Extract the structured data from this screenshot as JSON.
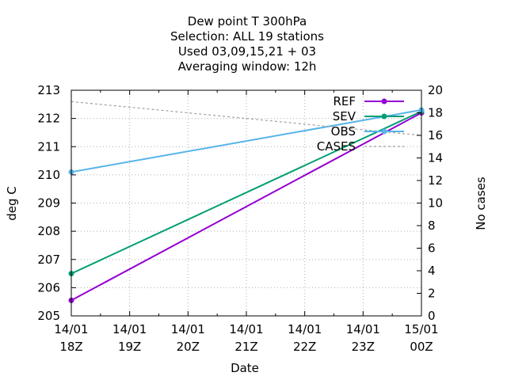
{
  "chart_data": {
    "type": "line",
    "title_lines": [
      "Dew point T 300hPa",
      "Selection: ALL      19 stations",
      "Used  03,09,15,21 + 03",
      "Averaging window: 12h"
    ],
    "xlabel": "Date",
    "ylabel": "deg C",
    "y2label": "No cases",
    "x_ticks": [
      {
        "top": "14/01",
        "bottom": "18Z"
      },
      {
        "top": "14/01",
        "bottom": "19Z"
      },
      {
        "top": "14/01",
        "bottom": "20Z"
      },
      {
        "top": "14/01",
        "bottom": "21Z"
      },
      {
        "top": "14/01",
        "bottom": "22Z"
      },
      {
        "top": "14/01",
        "bottom": "23Z"
      },
      {
        "top": "15/01",
        "bottom": "00Z"
      }
    ],
    "xlim": [
      0,
      6
    ],
    "ylim": [
      205,
      213
    ],
    "y_ticks": [
      205,
      206,
      207,
      208,
      209,
      210,
      211,
      212,
      213
    ],
    "y2lim": [
      0,
      20
    ],
    "y2_ticks": [
      0,
      2,
      4,
      6,
      8,
      10,
      12,
      14,
      16,
      18,
      20
    ],
    "grid": true,
    "legend_position": "top-right",
    "series": [
      {
        "name": "REF",
        "axis": "y",
        "color": "#9400d3",
        "style": "solid-points",
        "x": [
          0,
          6
        ],
        "values": [
          205.55,
          212.2
        ]
      },
      {
        "name": "SEV",
        "axis": "y",
        "color": "#009e73",
        "style": "solid-points",
        "x": [
          0,
          6
        ],
        "values": [
          206.5,
          212.25
        ]
      },
      {
        "name": "OBS",
        "axis": "y",
        "color": "#56b4e9",
        "style": "solid-points",
        "x": [
          0,
          6
        ],
        "values": [
          210.1,
          212.3
        ]
      },
      {
        "name": "CASES",
        "axis": "y2",
        "color": "#a0a0a0",
        "style": "dashed",
        "x": [
          0,
          6
        ],
        "values": [
          19,
          16
        ]
      }
    ]
  }
}
